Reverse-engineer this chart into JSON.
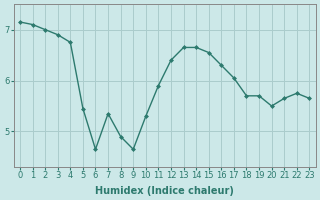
{
  "x": [
    0,
    1,
    2,
    3,
    4,
    5,
    6,
    7,
    8,
    9,
    10,
    11,
    12,
    13,
    14,
    15,
    16,
    17,
    18,
    19,
    20,
    21,
    22,
    23
  ],
  "y": [
    7.15,
    7.1,
    7.0,
    6.9,
    6.75,
    5.45,
    4.65,
    5.35,
    4.9,
    4.65,
    5.3,
    5.9,
    6.4,
    6.65,
    6.65,
    6.55,
    6.3,
    6.05,
    5.7,
    5.7,
    5.5,
    5.65,
    5.75,
    5.65
  ],
  "line_color": "#2d7a6e",
  "marker": "D",
  "marker_size": 2.0,
  "bg_color": "#cce8e8",
  "grid_color": "#aacccc",
  "xlabel": "Humidex (Indice chaleur)",
  "xlabel_fontsize": 7,
  "ylabel_ticks": [
    5,
    6,
    7
  ],
  "xtick_labels": [
    "0",
    "1",
    "2",
    "3",
    "4",
    "5",
    "6",
    "7",
    "8",
    "9",
    "10",
    "11",
    "12",
    "13",
    "14",
    "15",
    "16",
    "17",
    "18",
    "19",
    "20",
    "21",
    "22",
    "23"
  ],
  "ylim": [
    4.3,
    7.5
  ],
  "xlim": [
    -0.5,
    23.5
  ],
  "tick_fontsize": 6.0,
  "line_width": 1.0
}
